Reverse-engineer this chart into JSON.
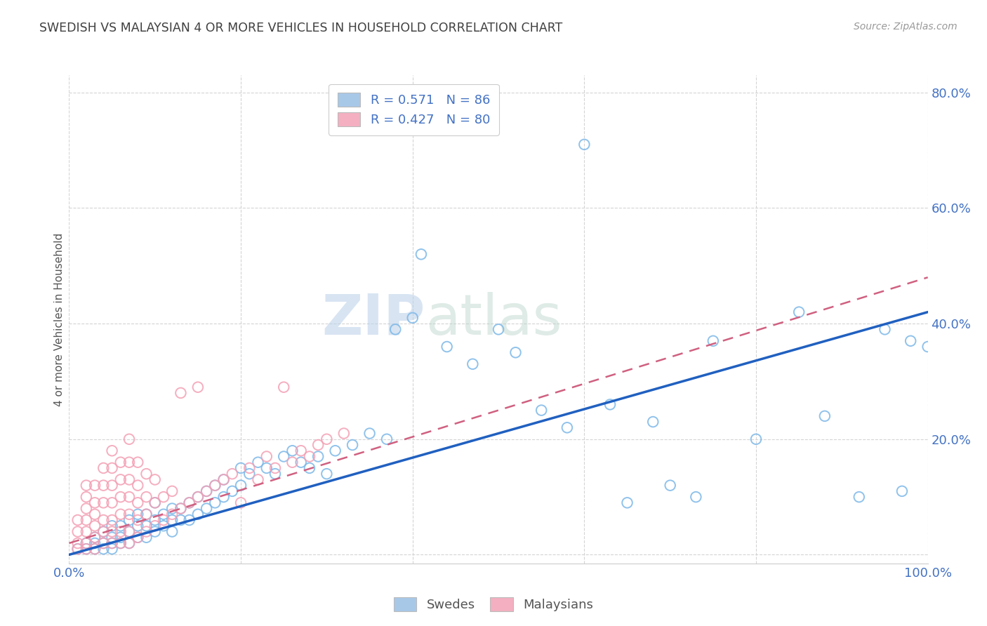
{
  "title": "SWEDISH VS MALAYSIAN 4 OR MORE VEHICLES IN HOUSEHOLD CORRELATION CHART",
  "source": "Source: ZipAtlas.com",
  "ylabel": "4 or more Vehicles in Household",
  "watermark_zip": "ZIP",
  "watermark_atlas": "atlas",
  "scatter_blue_color": "#7db8e8",
  "scatter_pink_color": "#f4a0b4",
  "line_blue_color": "#2060c0",
  "line_pink_color": "#d06080",
  "title_color": "#404040",
  "axis_color": "#4472c4",
  "grid_color": "#d0d0d0",
  "background_color": "#ffffff",
  "legend_label1": "R = 0.571   N = 86",
  "legend_label2": "R = 0.427   N = 80",
  "legend_color1": "#a8c8e8",
  "legend_color2": "#f4b0c0",
  "blue_intercept": 0.0,
  "blue_slope": 0.42,
  "pink_intercept": 0.02,
  "pink_slope": 0.46,
  "blue_x": [
    0.01,
    0.02,
    0.02,
    0.03,
    0.03,
    0.03,
    0.04,
    0.04,
    0.04,
    0.05,
    0.05,
    0.05,
    0.05,
    0.06,
    0.06,
    0.06,
    0.07,
    0.07,
    0.07,
    0.08,
    0.08,
    0.08,
    0.09,
    0.09,
    0.09,
    0.1,
    0.1,
    0.1,
    0.11,
    0.11,
    0.12,
    0.12,
    0.12,
    0.13,
    0.13,
    0.14,
    0.14,
    0.15,
    0.15,
    0.16,
    0.16,
    0.17,
    0.17,
    0.18,
    0.18,
    0.19,
    0.2,
    0.2,
    0.21,
    0.22,
    0.23,
    0.24,
    0.25,
    0.26,
    0.27,
    0.28,
    0.29,
    0.3,
    0.31,
    0.33,
    0.35,
    0.37,
    0.38,
    0.4,
    0.41,
    0.44,
    0.47,
    0.5,
    0.52,
    0.55,
    0.58,
    0.6,
    0.63,
    0.65,
    0.68,
    0.7,
    0.73,
    0.75,
    0.8,
    0.85,
    0.88,
    0.92,
    0.95,
    0.97,
    0.98,
    1.0
  ],
  "blue_y": [
    0.01,
    0.01,
    0.02,
    0.01,
    0.02,
    0.03,
    0.01,
    0.02,
    0.04,
    0.01,
    0.02,
    0.03,
    0.05,
    0.02,
    0.03,
    0.05,
    0.02,
    0.04,
    0.06,
    0.03,
    0.05,
    0.07,
    0.03,
    0.05,
    0.07,
    0.04,
    0.06,
    0.09,
    0.05,
    0.07,
    0.04,
    0.06,
    0.08,
    0.06,
    0.08,
    0.06,
    0.09,
    0.07,
    0.1,
    0.08,
    0.11,
    0.09,
    0.12,
    0.1,
    0.13,
    0.11,
    0.12,
    0.15,
    0.14,
    0.16,
    0.15,
    0.14,
    0.17,
    0.18,
    0.16,
    0.15,
    0.17,
    0.14,
    0.18,
    0.19,
    0.21,
    0.2,
    0.39,
    0.41,
    0.52,
    0.36,
    0.33,
    0.39,
    0.35,
    0.25,
    0.22,
    0.71,
    0.26,
    0.09,
    0.23,
    0.12,
    0.1,
    0.37,
    0.2,
    0.42,
    0.24,
    0.1,
    0.39,
    0.11,
    0.37,
    0.36
  ],
  "pink_x": [
    0.01,
    0.01,
    0.01,
    0.01,
    0.02,
    0.02,
    0.02,
    0.02,
    0.02,
    0.02,
    0.02,
    0.03,
    0.03,
    0.03,
    0.03,
    0.03,
    0.03,
    0.04,
    0.04,
    0.04,
    0.04,
    0.04,
    0.04,
    0.05,
    0.05,
    0.05,
    0.05,
    0.05,
    0.05,
    0.05,
    0.06,
    0.06,
    0.06,
    0.06,
    0.06,
    0.06,
    0.07,
    0.07,
    0.07,
    0.07,
    0.07,
    0.07,
    0.07,
    0.08,
    0.08,
    0.08,
    0.08,
    0.08,
    0.09,
    0.09,
    0.09,
    0.09,
    0.1,
    0.1,
    0.1,
    0.11,
    0.11,
    0.12,
    0.12,
    0.13,
    0.13,
    0.14,
    0.15,
    0.15,
    0.16,
    0.17,
    0.18,
    0.19,
    0.2,
    0.21,
    0.22,
    0.23,
    0.24,
    0.25,
    0.26,
    0.27,
    0.28,
    0.29,
    0.3,
    0.32
  ],
  "pink_y": [
    0.01,
    0.02,
    0.04,
    0.06,
    0.01,
    0.02,
    0.04,
    0.06,
    0.08,
    0.1,
    0.12,
    0.01,
    0.03,
    0.05,
    0.07,
    0.09,
    0.12,
    0.02,
    0.04,
    0.06,
    0.09,
    0.12,
    0.15,
    0.02,
    0.04,
    0.06,
    0.09,
    0.12,
    0.15,
    0.18,
    0.02,
    0.04,
    0.07,
    0.1,
    0.13,
    0.16,
    0.02,
    0.04,
    0.07,
    0.1,
    0.13,
    0.16,
    0.2,
    0.03,
    0.06,
    0.09,
    0.12,
    0.16,
    0.04,
    0.07,
    0.1,
    0.14,
    0.05,
    0.09,
    0.13,
    0.06,
    0.1,
    0.07,
    0.11,
    0.08,
    0.28,
    0.09,
    0.1,
    0.29,
    0.11,
    0.12,
    0.13,
    0.14,
    0.09,
    0.15,
    0.13,
    0.17,
    0.15,
    0.29,
    0.16,
    0.18,
    0.17,
    0.19,
    0.2,
    0.21
  ]
}
